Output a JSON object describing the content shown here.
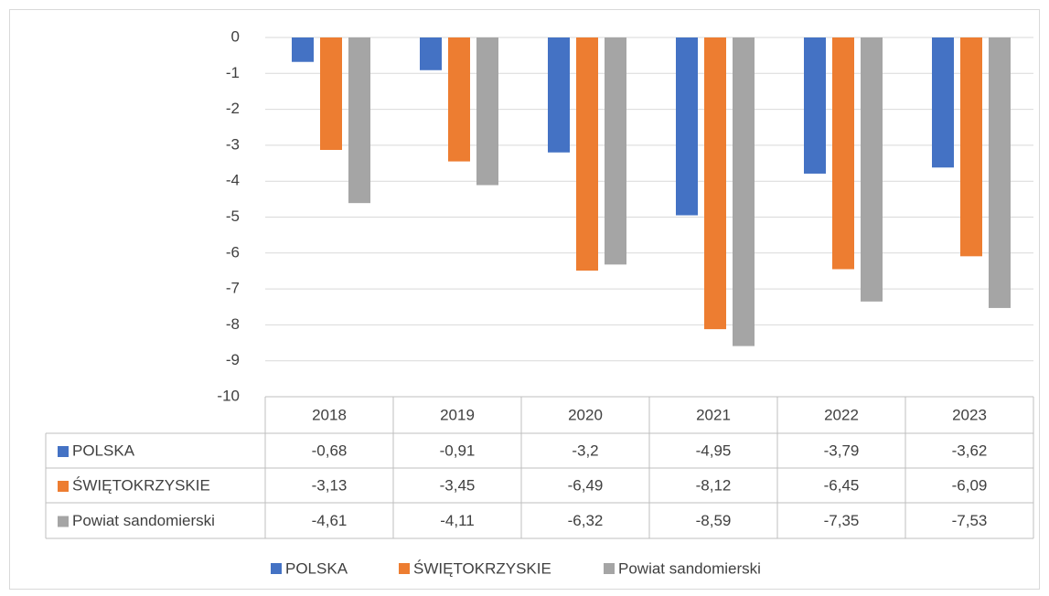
{
  "chart_data": {
    "type": "bar",
    "categories": [
      "2018",
      "2019",
      "2020",
      "2021",
      "2022",
      "2023"
    ],
    "series": [
      {
        "name": "POLSKA",
        "color": "#4472c4",
        "values": [
          -0.68,
          -0.91,
          -3.2,
          -4.95,
          -3.79,
          -3.62
        ],
        "value_labels": [
          "-0,68",
          "-0,91",
          "-3,2",
          "-4,95",
          "-3,79",
          "-3,62"
        ]
      },
      {
        "name": "ŚWIĘTOKRZYSKIE",
        "color": "#ed7d31",
        "values": [
          -3.13,
          -3.45,
          -6.49,
          -8.12,
          -6.45,
          -6.09
        ],
        "value_labels": [
          "-3,13",
          "-3,45",
          "-6,49",
          "-8,12",
          "-6,45",
          "-6,09"
        ]
      },
      {
        "name": "Powiat sandomierski",
        "color": "#a5a5a5",
        "values": [
          -4.61,
          -4.11,
          -6.32,
          -8.59,
          -7.35,
          -7.53
        ],
        "value_labels": [
          "-4,61",
          "-4,11",
          "-6,32",
          "-8,59",
          "-7,35",
          "-7,53"
        ]
      }
    ],
    "ylim": [
      -10,
      0
    ],
    "yticks": [
      0,
      -1,
      -2,
      -3,
      -4,
      -5,
      -6,
      -7,
      -8,
      -9,
      -10
    ],
    "grid": true,
    "legend": "bottom",
    "data_table": true
  }
}
